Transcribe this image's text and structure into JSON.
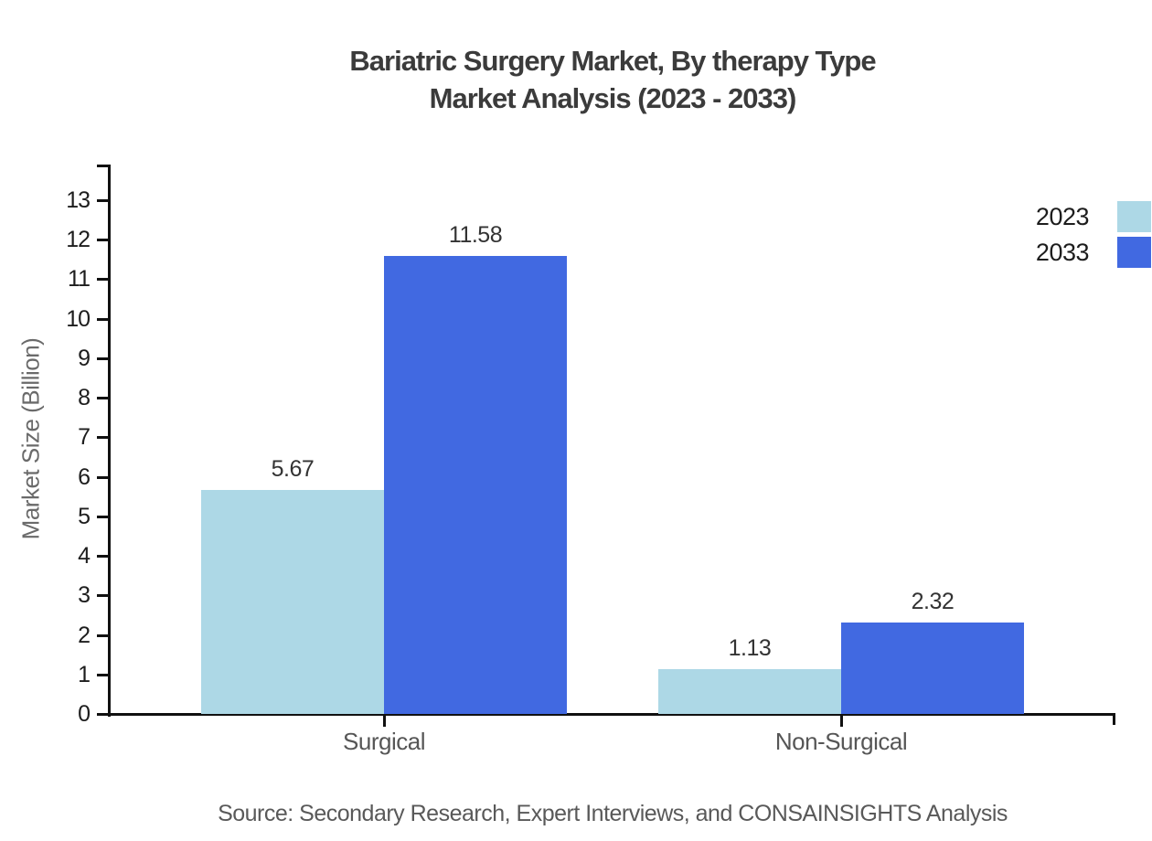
{
  "chart_data": {
    "type": "bar",
    "title_lines": [
      "Bariatric Surgery Market, By therapy Type",
      "Market Analysis (2023 - 2033)"
    ],
    "categories": [
      "Surgical",
      "Non-Surgical"
    ],
    "series": [
      {
        "name": "2023",
        "color": "#ADD8E6",
        "values": [
          5.67,
          1.13
        ]
      },
      {
        "name": "2033",
        "color": "#4169E1",
        "values": [
          11.58,
          2.32
        ]
      }
    ],
    "value_labels": [
      "5.67",
      "11.58",
      "1.13",
      "2.32"
    ],
    "xlabel": "",
    "ylabel": "Market Size (Billion)",
    "ylim": [
      0,
      13
    ],
    "ytick_step": 1,
    "ytick_labels": [
      "0",
      "1",
      "2",
      "3",
      "4",
      "5",
      "6",
      "7",
      "8",
      "9",
      "10",
      "11",
      "12",
      "13"
    ],
    "grid": false,
    "legend_position": "right",
    "source": "Source: Secondary Research, Expert Interviews, and CONSAINSIGHTS Analysis"
  }
}
